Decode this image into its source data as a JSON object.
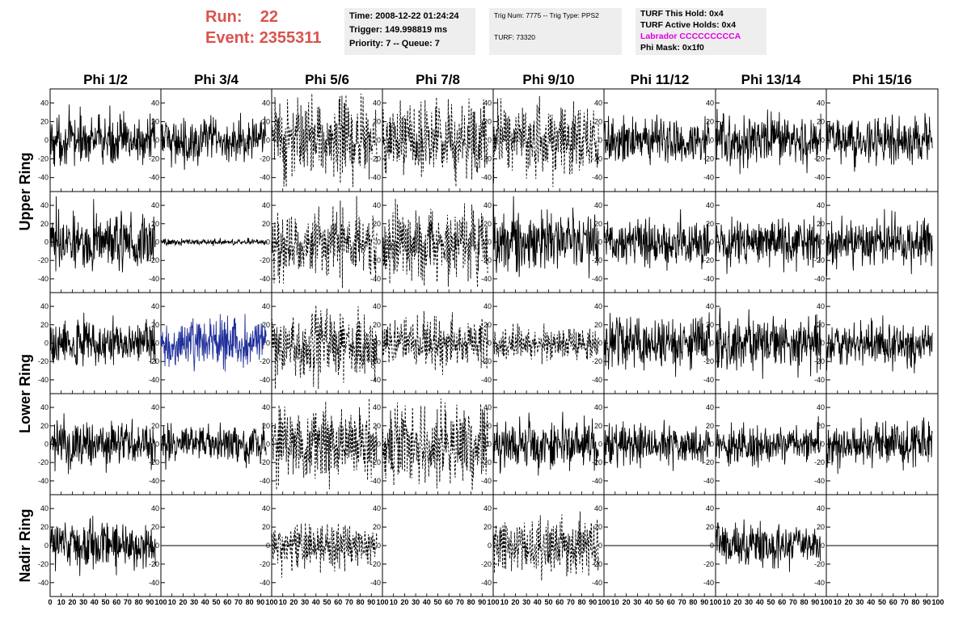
{
  "header": {
    "run_label": "Run:",
    "run_value": "22",
    "event_label": "Event:",
    "event_value": "2355311",
    "time": "Time: 2008-12-22 01:24:24",
    "trigger": "Trigger: 149.998819 ms",
    "priority": "Priority: 7 -- Queue: 7",
    "trig_num": "Trig Num: 7775 -- Trig Type: PPS2",
    "turf": "TURF: 73320",
    "turf_this_hold": "TURF This Hold: 0x4",
    "turf_active_holds": "TURF Active Holds: 0x4",
    "labrador": "Labrador CCCCCCCCCA",
    "phi_mask": "Phi Mask: 0x1f0"
  },
  "colors": {
    "run_text": "#d9534f",
    "labrador_text": "#e000e0",
    "trace": "#000000",
    "highlight_trace": "#1f2f9a",
    "info_bg": "#eeeeee"
  },
  "chart_data": {
    "type": "line",
    "columns": [
      "Phi 1/2",
      "Phi 3/4",
      "Phi 5/6",
      "Phi 7/8",
      "Phi 9/10",
      "Phi 11/12",
      "Phi 13/14",
      "Phi 15/16"
    ],
    "rows": [
      "Upper Ring",
      "Upper Ring",
      "Lower Ring",
      "Lower Ring",
      "Nadir Ring"
    ],
    "row_labels": [
      "Upper Ring",
      "Lower Ring",
      "Nadir Ring"
    ],
    "y_ticks": [
      -40,
      -20,
      0,
      20,
      40
    ],
    "x_ticks": [
      0,
      10,
      20,
      30,
      40,
      50,
      60,
      70,
      80,
      90,
      100
    ],
    "ylim": [
      -55,
      55
    ],
    "xlim": [
      0,
      100
    ],
    "trace_x_range": [
      0,
      95
    ],
    "samples": 260,
    "panels": [
      {
        "row": 0,
        "col": 0,
        "style": "solid",
        "amplitude": 15
      },
      {
        "row": 0,
        "col": 1,
        "style": "solid",
        "amplitude": 13
      },
      {
        "row": 0,
        "col": 2,
        "style": "dashed",
        "amplitude": 20
      },
      {
        "row": 0,
        "col": 3,
        "style": "dashed",
        "amplitude": 20
      },
      {
        "row": 0,
        "col": 4,
        "style": "dashed",
        "amplitude": 18
      },
      {
        "row": 0,
        "col": 5,
        "style": "solid",
        "amplitude": 13
      },
      {
        "row": 0,
        "col": 6,
        "style": "solid",
        "amplitude": 16
      },
      {
        "row": 0,
        "col": 7,
        "style": "solid",
        "amplitude": 13
      },
      {
        "row": 1,
        "col": 0,
        "style": "solid",
        "amplitude": 18
      },
      {
        "row": 1,
        "col": 1,
        "style": "solid",
        "amplitude": 2
      },
      {
        "row": 1,
        "col": 2,
        "style": "dashed",
        "amplitude": 18
      },
      {
        "row": 1,
        "col": 3,
        "style": "dashed",
        "amplitude": 18
      },
      {
        "row": 1,
        "col": 4,
        "style": "solid",
        "amplitude": 18
      },
      {
        "row": 1,
        "col": 5,
        "style": "solid",
        "amplitude": 14
      },
      {
        "row": 1,
        "col": 6,
        "style": "solid",
        "amplitude": 15
      },
      {
        "row": 1,
        "col": 7,
        "style": "solid",
        "amplitude": 15
      },
      {
        "row": 2,
        "col": 0,
        "style": "solid",
        "amplitude": 14
      },
      {
        "row": 2,
        "col": 1,
        "style": "solid",
        "amplitude": 15,
        "highlight": true
      },
      {
        "row": 2,
        "col": 2,
        "style": "dashed",
        "amplitude": 17
      },
      {
        "row": 2,
        "col": 3,
        "style": "dashed",
        "amplitude": 13
      },
      {
        "row": 2,
        "col": 4,
        "style": "dashed",
        "amplitude": 8
      },
      {
        "row": 2,
        "col": 5,
        "style": "solid",
        "amplitude": 16
      },
      {
        "row": 2,
        "col": 6,
        "style": "solid",
        "amplitude": 17
      },
      {
        "row": 2,
        "col": 7,
        "style": "solid",
        "amplitude": 13
      },
      {
        "row": 3,
        "col": 0,
        "style": "solid",
        "amplitude": 15
      },
      {
        "row": 3,
        "col": 1,
        "style": "solid",
        "amplitude": 12
      },
      {
        "row": 3,
        "col": 2,
        "style": "dashed",
        "amplitude": 18
      },
      {
        "row": 3,
        "col": 3,
        "style": "dashed",
        "amplitude": 20
      },
      {
        "row": 3,
        "col": 4,
        "style": "solid",
        "amplitude": 16
      },
      {
        "row": 3,
        "col": 5,
        "style": "solid",
        "amplitude": 12
      },
      {
        "row": 3,
        "col": 6,
        "style": "solid",
        "amplitude": 12
      },
      {
        "row": 3,
        "col": 7,
        "style": "solid",
        "amplitude": 14
      },
      {
        "row": 4,
        "col": 0,
        "style": "solid",
        "amplitude": 14
      },
      {
        "row": 4,
        "col": 1,
        "style": "flat",
        "amplitude": 0
      },
      {
        "row": 4,
        "col": 2,
        "style": "dashed",
        "amplitude": 12
      },
      {
        "row": 4,
        "col": 3,
        "style": "none",
        "amplitude": 0
      },
      {
        "row": 4,
        "col": 4,
        "style": "dashed",
        "amplitude": 14
      },
      {
        "row": 4,
        "col": 5,
        "style": "flat",
        "amplitude": 0
      },
      {
        "row": 4,
        "col": 6,
        "style": "solid",
        "amplitude": 14
      },
      {
        "row": 4,
        "col": 7,
        "style": "flat",
        "amplitude": 0
      }
    ]
  }
}
